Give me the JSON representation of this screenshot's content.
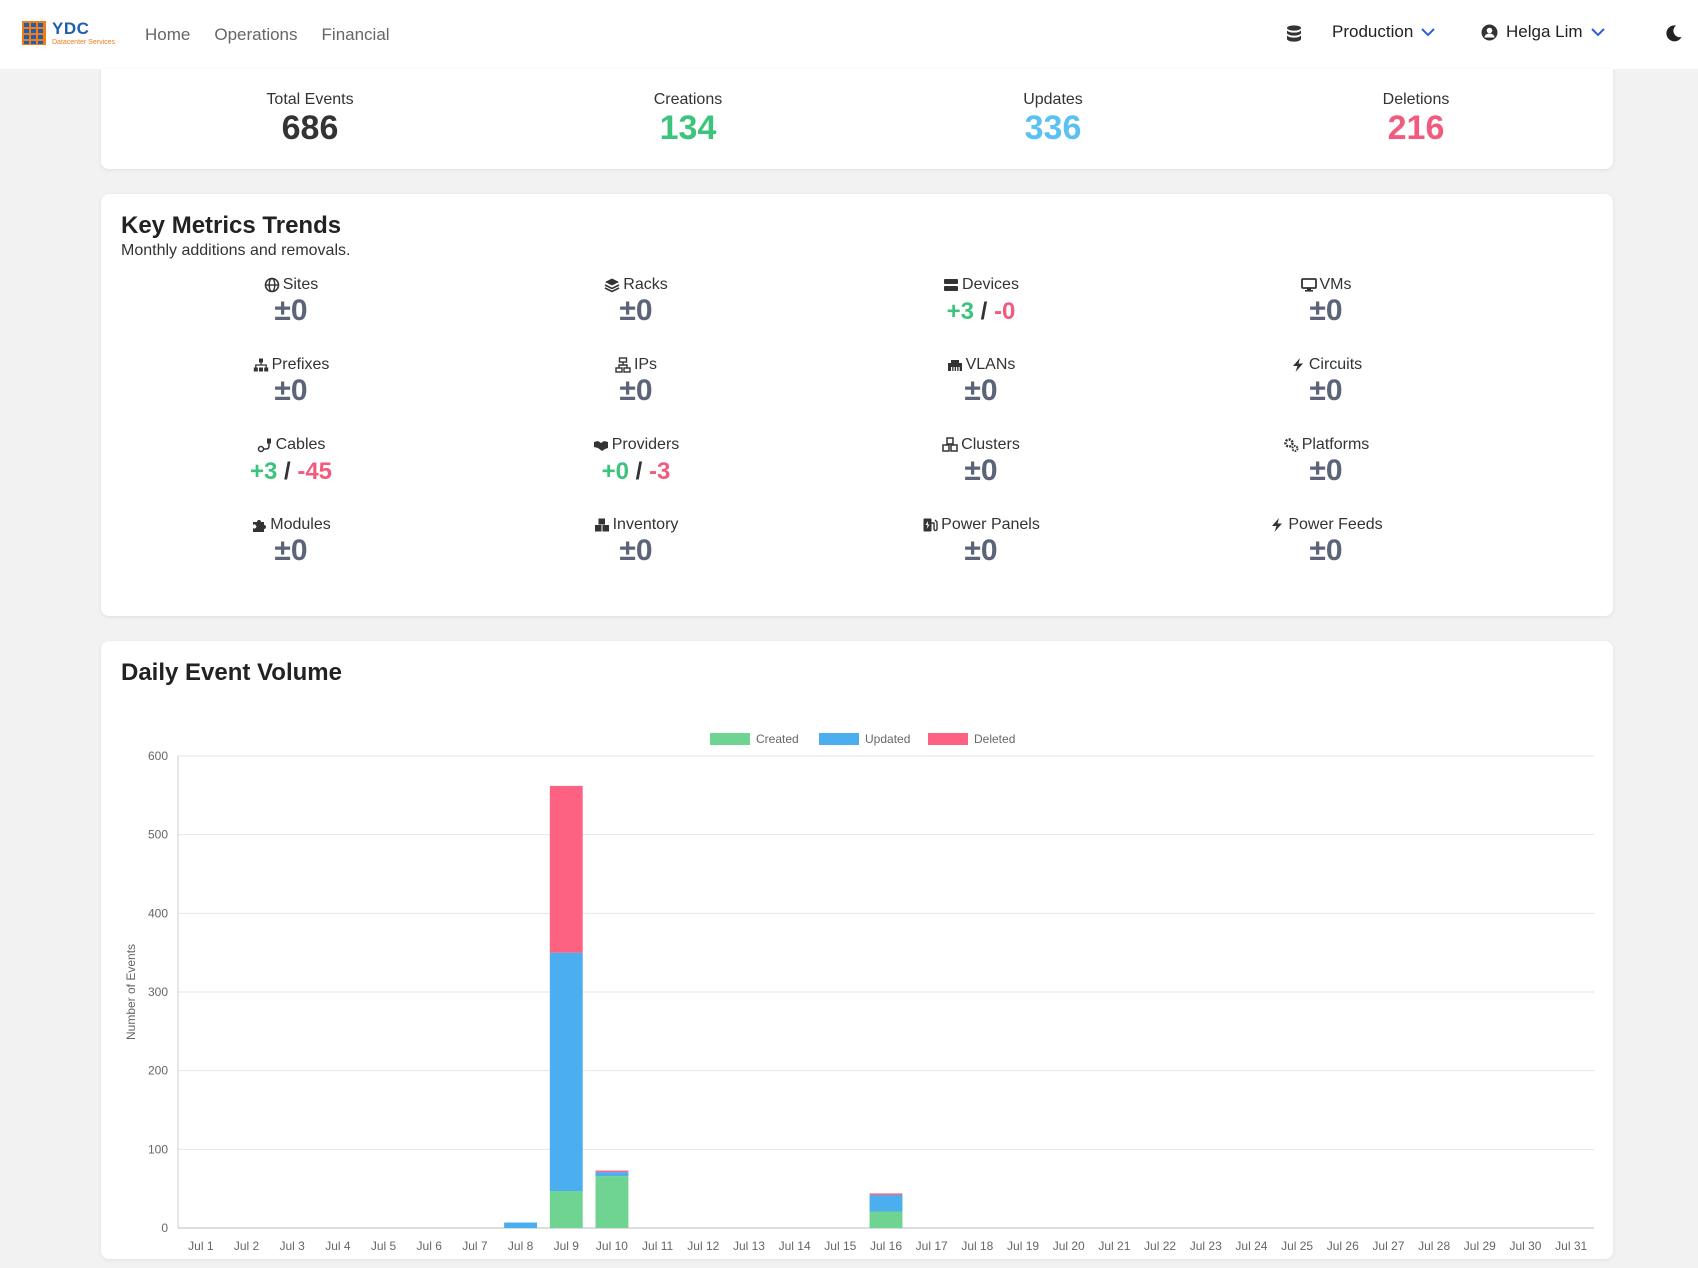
{
  "brand": {
    "name": "YDC",
    "tagline": "Datacenter Services"
  },
  "nav": {
    "links": [
      "Home",
      "Operations",
      "Financial"
    ]
  },
  "header": {
    "environment": "Production",
    "user": "Helga Lim"
  },
  "stats": {
    "total": {
      "label": "Total Events",
      "value": "686",
      "color": "#333333"
    },
    "creations": {
      "label": "Creations",
      "value": "134",
      "color": "#3cc47c"
    },
    "updates": {
      "label": "Updates",
      "value": "336",
      "color": "#5bc0f2"
    },
    "deletions": {
      "label": "Deletions",
      "value": "216",
      "color": "#f25b7d"
    }
  },
  "metrics": {
    "title": "Key Metrics Trends",
    "subtitle": "Monthly additions and removals.",
    "items": [
      {
        "label": "Sites",
        "icon": "globe-icon",
        "value": "±0"
      },
      {
        "label": "Racks",
        "icon": "layers-icon",
        "value": "±0"
      },
      {
        "label": "Devices",
        "icon": "server-icon",
        "plus": "+3",
        "minus": "-0"
      },
      {
        "label": "VMs",
        "icon": "monitor-icon",
        "value": "±0"
      },
      {
        "label": "Prefixes",
        "icon": "sitemap-icon",
        "value": "±0"
      },
      {
        "label": "IPs",
        "icon": "network-icon",
        "value": "±0"
      },
      {
        "label": "VLANs",
        "icon": "ethernet-icon",
        "value": "±0"
      },
      {
        "label": "Circuits",
        "icon": "bolt-icon",
        "value": "±0"
      },
      {
        "label": "Cables",
        "icon": "cable-icon",
        "plus": "+3",
        "minus": "-45"
      },
      {
        "label": "Providers",
        "icon": "handshake-icon",
        "plus": "+0",
        "minus": "-3"
      },
      {
        "label": "Clusters",
        "icon": "cubes-icon",
        "value": "±0"
      },
      {
        "label": "Platforms",
        "icon": "gears-icon",
        "value": "±0"
      },
      {
        "label": "Modules",
        "icon": "puzzle-icon",
        "value": "±0"
      },
      {
        "label": "Inventory",
        "icon": "boxes-icon",
        "value": "±0"
      },
      {
        "label": "Power Panels",
        "icon": "charging-station-icon",
        "value": "±0"
      },
      {
        "label": "Power Feeds",
        "icon": "power-bolt-icon",
        "value": "±0"
      }
    ]
  },
  "chart": {
    "title": "Daily Event Volume"
  },
  "chart_data": {
    "type": "bar",
    "stacked": true,
    "categories": [
      "Jul 1",
      "Jul 2",
      "Jul 3",
      "Jul 4",
      "Jul 5",
      "Jul 6",
      "Jul 7",
      "Jul 8",
      "Jul 9",
      "Jul 10",
      "Jul 11",
      "Jul 12",
      "Jul 13",
      "Jul 14",
      "Jul 15",
      "Jul 16",
      "Jul 17",
      "Jul 18",
      "Jul 19",
      "Jul 20",
      "Jul 21",
      "Jul 22",
      "Jul 23",
      "Jul 24",
      "Jul 25",
      "Jul 26",
      "Jul 27",
      "Jul 28",
      "Jul 29",
      "Jul 30",
      "Jul 31"
    ],
    "series": [
      {
        "name": "Created",
        "color": "#6fd391",
        "values": [
          0,
          0,
          0,
          0,
          0,
          0,
          0,
          0,
          47,
          66,
          0,
          0,
          0,
          0,
          0,
          21,
          0,
          0,
          0,
          0,
          0,
          0,
          0,
          0,
          0,
          0,
          0,
          0,
          0,
          0,
          0
        ]
      },
      {
        "name": "Updated",
        "color": "#4aaeef",
        "values": [
          0,
          0,
          0,
          0,
          0,
          0,
          0,
          7,
          303,
          5,
          0,
          0,
          0,
          0,
          0,
          21,
          0,
          0,
          0,
          0,
          0,
          0,
          0,
          0,
          0,
          0,
          0,
          0,
          0,
          0,
          0
        ]
      },
      {
        "name": "Deleted",
        "color": "#fd6282",
        "values": [
          0,
          0,
          0,
          0,
          0,
          0,
          0,
          0,
          212,
          2,
          0,
          0,
          0,
          0,
          0,
          2,
          0,
          0,
          0,
          0,
          0,
          0,
          0,
          0,
          0,
          0,
          0,
          0,
          0,
          0,
          0
        ]
      }
    ],
    "ylabel": "Number of Events",
    "ylim": [
      0,
      600
    ],
    "yticks": [
      0,
      100,
      200,
      300,
      400,
      500,
      600
    ],
    "grid": true,
    "legend": "top-center"
  }
}
